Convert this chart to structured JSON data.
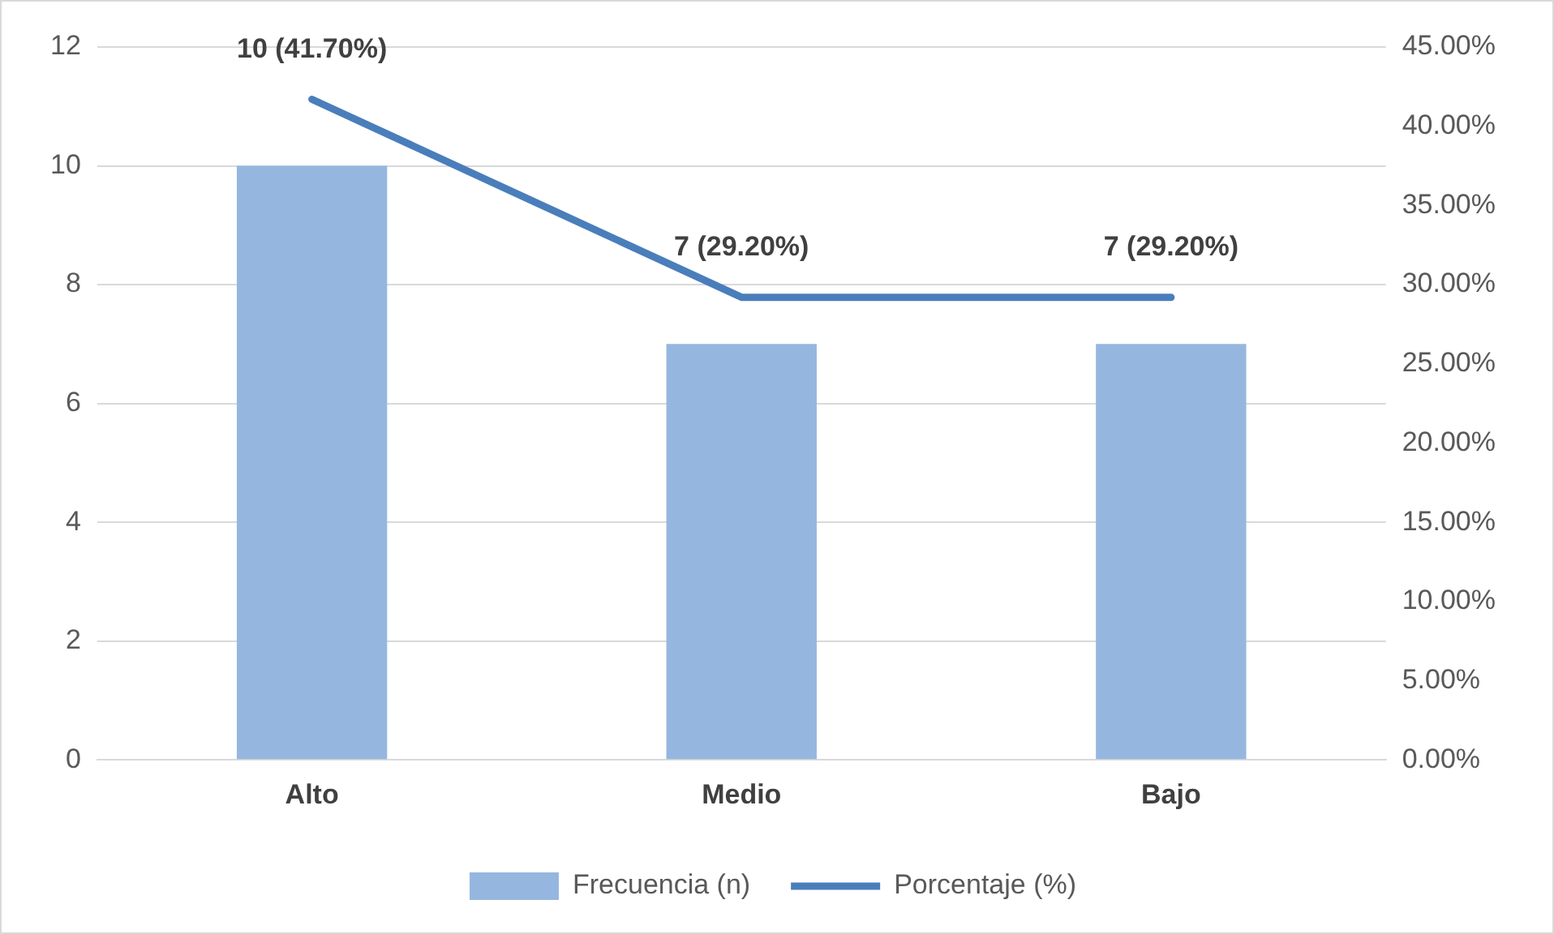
{
  "chart_data": {
    "type": "bar",
    "categories": [
      "Alto",
      "Medio",
      "Bajo"
    ],
    "series": [
      {
        "name": "Frecuencia (n)",
        "color": "#95b7df",
        "values": [
          10,
          7,
          7
        ]
      },
      {
        "name": "Porcentaje (%)",
        "type": "line",
        "axis": "y2",
        "color": "#4a7ebb",
        "values": [
          41.7,
          29.2,
          29.2
        ],
        "value_labels": [
          "10 (41.70%)",
          "7 (29.20%)",
          "7 (29.20%)"
        ]
      }
    ],
    "ylim": [
      0,
      12
    ],
    "yticks": [
      0,
      2,
      4,
      6,
      8,
      10,
      12
    ],
    "y2lim": [
      0,
      45
    ],
    "y2ticks": [
      {
        "value": 0,
        "label": "0.00%"
      },
      {
        "value": 5,
        "label": "5.00%"
      },
      {
        "value": 10,
        "label": "10.00%"
      },
      {
        "value": 15,
        "label": "15.00%"
      },
      {
        "value": 20,
        "label": "20.00%"
      },
      {
        "value": 25,
        "label": "25.00%"
      },
      {
        "value": 30,
        "label": "30.00%"
      },
      {
        "value": 35,
        "label": "35.00%"
      },
      {
        "value": 40,
        "label": "40.00%"
      },
      {
        "value": 45,
        "label": "45.00%"
      }
    ],
    "grid": "y",
    "legend": "bottom",
    "marker": "none",
    "line_style": "solid"
  }
}
